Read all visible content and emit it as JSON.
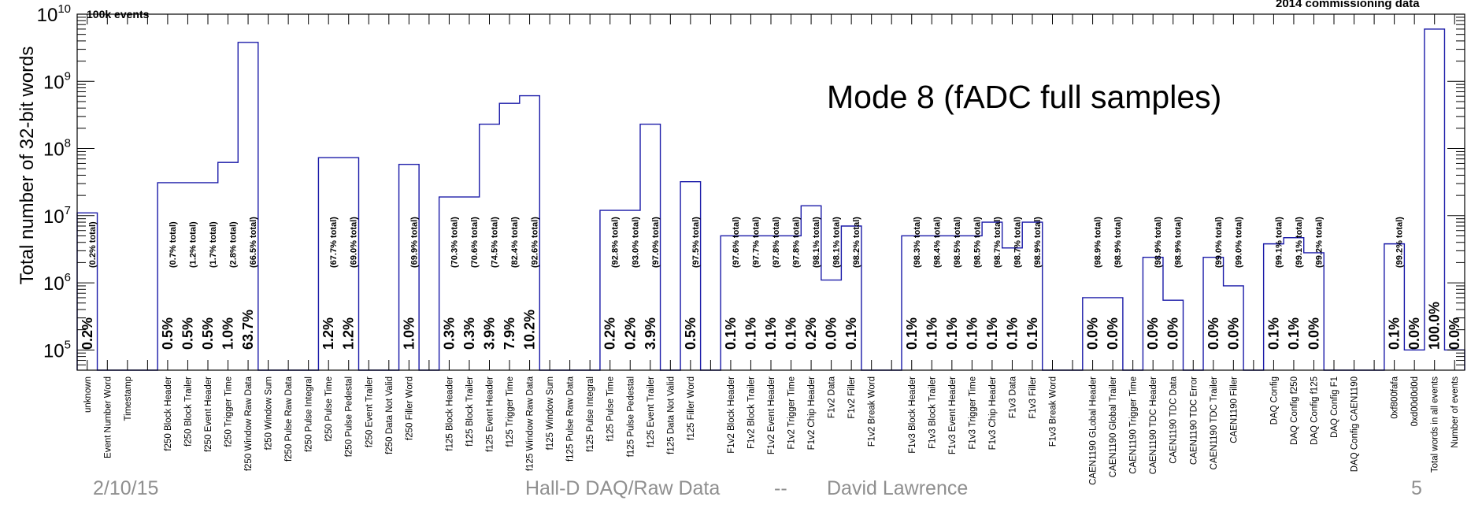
{
  "chart_data": {
    "type": "bar",
    "title": "100k events",
    "subtitle": "2014 commissioning data",
    "annotation": "Mode 8 (fADC full samples)",
    "ylabel": "Total number of 32-bit words",
    "xlabel": "",
    "y_scale": "log",
    "ylim": [
      50000,
      10000000000
    ],
    "y_tick_labels": [
      "10^5",
      "10^6",
      "10^7",
      "10^8",
      "10^9",
      "10^10"
    ],
    "grid": false,
    "legend": "none",
    "colors": {
      "bars": "#1a1aa8",
      "axes": "#000000"
    },
    "bins": [
      {
        "label": "unknown",
        "value": 11000000,
        "pct": "0.2%",
        "cum": "(0.2% total)"
      },
      {
        "label": "Event Number Word",
        "value": null,
        "pct": "",
        "cum": ""
      },
      {
        "label": "Timestamp",
        "value": null,
        "pct": "",
        "cum": ""
      },
      {
        "label": "",
        "value": null,
        "pct": "",
        "cum": ""
      },
      {
        "label": "f250 Block Header",
        "value": 31000000,
        "pct": "0.5%",
        "cum": "(0.7% total)"
      },
      {
        "label": "f250 Block Trailer",
        "value": 31000000,
        "pct": "0.5%",
        "cum": "(1.2% total)"
      },
      {
        "label": "f250 Event Header",
        "value": 31000000,
        "pct": "0.5%",
        "cum": "(1.7% total)"
      },
      {
        "label": "f250 Trigger Time",
        "value": 62000000,
        "pct": "1.0%",
        "cum": "(2.8% total)"
      },
      {
        "label": "f250 Window Raw Data",
        "value": 3800000000,
        "pct": "63.7%",
        "cum": "(66.5% total)"
      },
      {
        "label": "f250 Window Sum",
        "value": null,
        "pct": "",
        "cum": ""
      },
      {
        "label": "f250 Pulse Raw Data",
        "value": null,
        "pct": "",
        "cum": ""
      },
      {
        "label": "f250 Pulse Integral",
        "value": null,
        "pct": "",
        "cum": ""
      },
      {
        "label": "f250 Pulse Time",
        "value": 73000000,
        "pct": "1.2%",
        "cum": "(67.7% total)"
      },
      {
        "label": "f250 Pulse Pedestal",
        "value": 73000000,
        "pct": "1.2%",
        "cum": "(69.0% total)"
      },
      {
        "label": "f250 Event Trailer",
        "value": null,
        "pct": "",
        "cum": ""
      },
      {
        "label": "f250 Data Not Valid",
        "value": null,
        "pct": "",
        "cum": ""
      },
      {
        "label": "f250 Filler Word",
        "value": 58000000,
        "pct": "1.0%",
        "cum": "(69.9% total)"
      },
      {
        "label": "",
        "value": null,
        "pct": "",
        "cum": ""
      },
      {
        "label": "f125 Block Header",
        "value": 19000000,
        "pct": "0.3%",
        "cum": "(70.3% total)"
      },
      {
        "label": "f125 Block Trailer",
        "value": 19000000,
        "pct": "0.3%",
        "cum": "(70.6% total)"
      },
      {
        "label": "f125 Event Header",
        "value": 230000000,
        "pct": "3.9%",
        "cum": "(74.5% total)"
      },
      {
        "label": "f125 Trigger Time",
        "value": 470000000,
        "pct": "7.9%",
        "cum": "(82.4% total)"
      },
      {
        "label": "f125 Window Raw Data",
        "value": 610000000,
        "pct": "10.2%",
        "cum": "(92.6% total)"
      },
      {
        "label": "f125 Window Sum",
        "value": null,
        "pct": "",
        "cum": ""
      },
      {
        "label": "f125 Pulse Raw Data",
        "value": null,
        "pct": "",
        "cum": ""
      },
      {
        "label": "f125 Pulse Integral",
        "value": null,
        "pct": "",
        "cum": ""
      },
      {
        "label": "f125 Pulse Time",
        "value": 12000000,
        "pct": "0.2%",
        "cum": "(92.8% total)"
      },
      {
        "label": "f125 Pulse Pedestal",
        "value": 12000000,
        "pct": "0.2%",
        "cum": "(93.0% total)"
      },
      {
        "label": "f125 Event Trailer",
        "value": 230000000,
        "pct": "3.9%",
        "cum": "(97.0% total)"
      },
      {
        "label": "f125 Data Not Valid",
        "value": null,
        "pct": "",
        "cum": ""
      },
      {
        "label": "f125 Filler Word",
        "value": 32000000,
        "pct": "0.5%",
        "cum": "(97.5% total)"
      },
      {
        "label": "",
        "value": null,
        "pct": "",
        "cum": ""
      },
      {
        "label": "F1v2 Block Header",
        "value": 5000000,
        "pct": "0.1%",
        "cum": "(97.6% total)"
      },
      {
        "label": "F1v2 Block Trailer",
        "value": 5000000,
        "pct": "0.1%",
        "cum": "(97.7% total)"
      },
      {
        "label": "F1v2 Event Header",
        "value": 5000000,
        "pct": "0.1%",
        "cum": "(97.8% total)"
      },
      {
        "label": "F1v2 Trigger Time",
        "value": 5000000,
        "pct": "0.1%",
        "cum": "(97.8% total)"
      },
      {
        "label": "F1v2 Chip Header",
        "value": 14000000,
        "pct": "0.2%",
        "cum": "(98.1% total)"
      },
      {
        "label": "F1v2 Data",
        "value": 1100000,
        "pct": "0.0%",
        "cum": "(98.1% total)"
      },
      {
        "label": "F1v2 Filler",
        "value": 7000000,
        "pct": "0.1%",
        "cum": "(98.2% total)"
      },
      {
        "label": "F1v2 Break Word",
        "value": null,
        "pct": "",
        "cum": ""
      },
      {
        "label": "",
        "value": null,
        "pct": "",
        "cum": ""
      },
      {
        "label": "F1v3 Block Header",
        "value": 5000000,
        "pct": "0.1%",
        "cum": "(98.3% total)"
      },
      {
        "label": "F1v3 Block Trailer",
        "value": 5000000,
        "pct": "0.1%",
        "cum": "(98.4% total)"
      },
      {
        "label": "F1v3 Event Header",
        "value": 5000000,
        "pct": "0.1%",
        "cum": "(98.5% total)"
      },
      {
        "label": "F1v3 Trigger Time",
        "value": 5000000,
        "pct": "0.1%",
        "cum": "(98.5% total)"
      },
      {
        "label": "F1v3 Chip Header",
        "value": 8000000,
        "pct": "0.1%",
        "cum": "(98.7% total)"
      },
      {
        "label": "F1v3 Data",
        "value": 3300000,
        "pct": "0.1%",
        "cum": "(98.7% total)"
      },
      {
        "label": "F1v3 Filler",
        "value": 8000000,
        "pct": "0.1%",
        "cum": "(98.9% total)"
      },
      {
        "label": "F1v3 Break Word",
        "value": null,
        "pct": "",
        "cum": ""
      },
      {
        "label": "",
        "value": null,
        "pct": "",
        "cum": ""
      },
      {
        "label": "CAEN1190 GLobal Header",
        "value": 600000,
        "pct": "0.0%",
        "cum": "(98.9% total)"
      },
      {
        "label": "CAEN1190 Global Trailer",
        "value": 600000,
        "pct": "0.0%",
        "cum": "(98.9% total)"
      },
      {
        "label": "CAEN1190 Trigger Time",
        "value": null,
        "pct": "",
        "cum": ""
      },
      {
        "label": "CAEN1190 TDC Header",
        "value": 2400000,
        "pct": "0.0%",
        "cum": "(98.9% total)"
      },
      {
        "label": "CAEN1190 TDC Data",
        "value": 550000,
        "pct": "0.0%",
        "cum": "(98.9% total)"
      },
      {
        "label": "CAEN1190 TDC Error",
        "value": null,
        "pct": "",
        "cum": ""
      },
      {
        "label": "CAEN1190 TDC Trailer",
        "value": 2400000,
        "pct": "0.0%",
        "cum": "(99.0% total)"
      },
      {
        "label": "CAEN1190 Filler",
        "value": 900000,
        "pct": "0.0%",
        "cum": "(99.0% total)"
      },
      {
        "label": "",
        "value": null,
        "pct": "",
        "cum": ""
      },
      {
        "label": "DAQ Config",
        "value": 3800000,
        "pct": "0.1%",
        "cum": "(99.1% total)"
      },
      {
        "label": "DAQ Config f250",
        "value": 4700000,
        "pct": "0.1%",
        "cum": "(99.1% total)"
      },
      {
        "label": "DAQ Config f125",
        "value": 2800000,
        "pct": "0.0%",
        "cum": "(99.2% total)"
      },
      {
        "label": "DAQ Config F1",
        "value": null,
        "pct": "",
        "cum": ""
      },
      {
        "label": "DAQ Config CAEN1190",
        "value": null,
        "pct": "",
        "cum": ""
      },
      {
        "label": "",
        "value": null,
        "pct": "",
        "cum": ""
      },
      {
        "label": "0xf800fafa",
        "value": 3800000,
        "pct": "0.1%",
        "cum": "(99.2% total)"
      },
      {
        "label": "0xd00d0d0d",
        "value": 100000,
        "pct": "0.0%",
        "cum": ""
      },
      {
        "label": "Total words in all events",
        "value": 6000000000,
        "pct": "100.0%",
        "cum": ""
      },
      {
        "label": "Number of events",
        "value": 100000,
        "pct": "0.0%",
        "cum": ""
      }
    ]
  },
  "footer": {
    "date": "2/10/15",
    "title": "Hall-D DAQ/Raw Data",
    "separator": "--",
    "author": "David Lawrence",
    "page": "5"
  }
}
